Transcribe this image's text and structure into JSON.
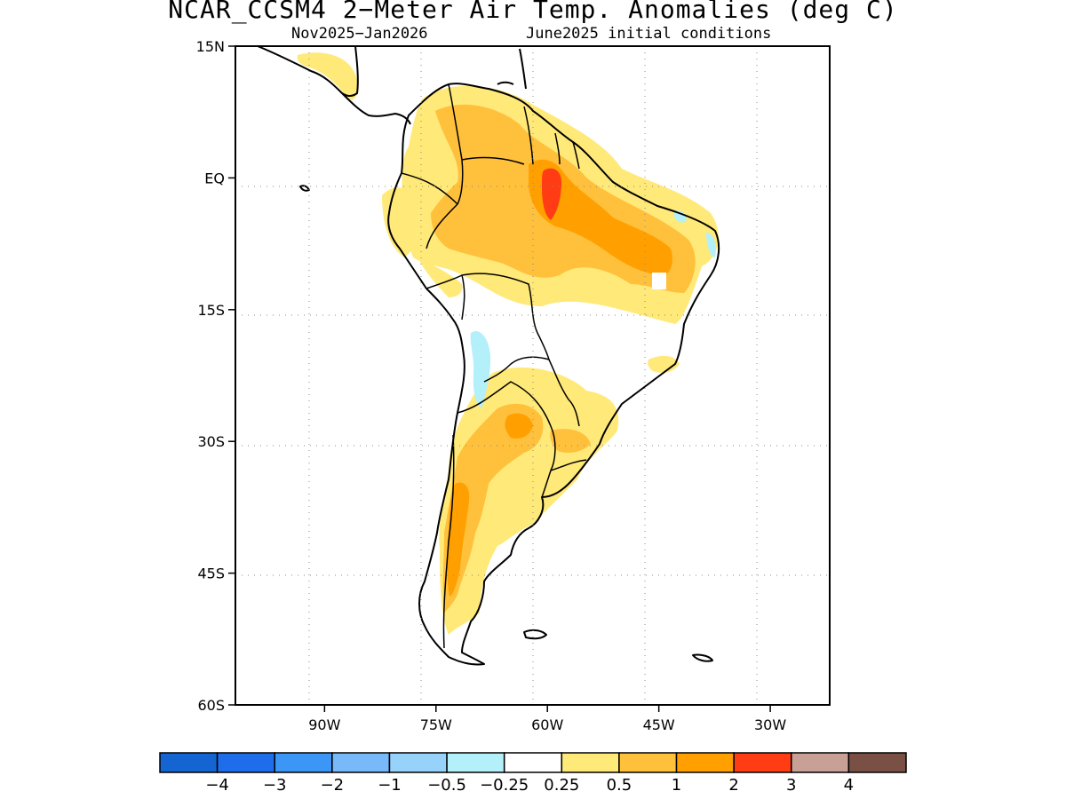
{
  "title": "NCAR_CCSM4 2−Meter Air Temp. Anomalies (deg C)",
  "subtitle_period": "Nov2025−Jan2026",
  "subtitle_ic": "June2025 initial conditions",
  "axes": {
    "lon_range": [
      -102,
      -22
    ],
    "lat_range": [
      -60,
      15
    ],
    "lat_ticks": [
      {
        "value": 15,
        "label": "15N"
      },
      {
        "value": 0,
        "label": "EQ"
      },
      {
        "value": -15,
        "label": "15S"
      },
      {
        "value": -30,
        "label": "30S"
      },
      {
        "value": -45,
        "label": "45S"
      },
      {
        "value": -60,
        "label": "60S"
      }
    ],
    "lon_ticks": [
      {
        "value": -90,
        "label": "90W"
      },
      {
        "value": -75,
        "label": "75W"
      },
      {
        "value": -60,
        "label": "60W"
      },
      {
        "value": -45,
        "label": "45W"
      },
      {
        "value": -30,
        "label": "30W"
      }
    ],
    "grid": "dotted"
  },
  "colorbar": {
    "colors": [
      "#1464d2",
      "#1e6eeb",
      "#3c96f5",
      "#78b9fa",
      "#96d2fa",
      "#b4f0fa",
      "#ffffff",
      "#ffe978",
      "#ffc03c",
      "#ffa000",
      "#ff3c14",
      "#c8a096",
      "#7a5044"
    ],
    "labels": [
      "−4",
      "−3",
      "−2",
      "−1",
      "−0.5",
      "−0.25",
      "0.25",
      "0.5",
      "1",
      "2",
      "3",
      "4"
    ]
  },
  "anomaly_regions": [
    {
      "level": "0.5",
      "color": "#ffe978",
      "description": "Northern and central South America, southern Brazil, Paraguay, Argentina"
    },
    {
      "level": "1",
      "color": "#ffc03c",
      "description": "Amazon basin, northeastern Brazil, Argentina, Chile"
    },
    {
      "level": "2",
      "color": "#ffa000",
      "description": "Central Amazon, northeast Brazil"
    },
    {
      "level": "3",
      "color": "#ff3c14",
      "description": "Northern Brazil near 60W"
    },
    {
      "level": "−0.25",
      "color": "#b4f0fa",
      "description": "Small patches in Andes and northeast Brazil coast"
    }
  ]
}
